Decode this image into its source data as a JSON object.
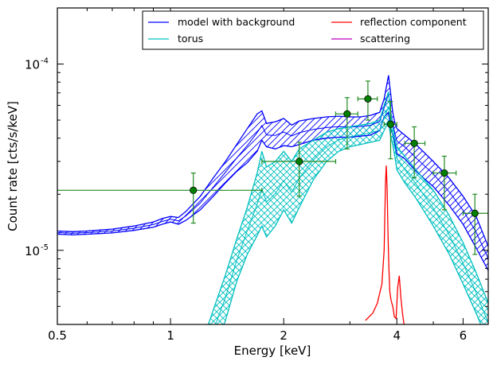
{
  "chart_data": {
    "type": "line",
    "xlabel": "Energy [keV]",
    "ylabel": "Count rate [cts/s/keV]",
    "xscale": "log",
    "yscale": "log",
    "xlim": [
      0.5,
      7.0
    ],
    "ylim": [
      4e-06,
      0.0002
    ],
    "x_ticks": [
      {
        "value": 0.5,
        "label": "0.5"
      },
      {
        "value": 1,
        "label": "1"
      },
      {
        "value": 2,
        "label": "2"
      },
      {
        "value": 4,
        "label": "4"
      },
      {
        "value": 6,
        "label": "6"
      }
    ],
    "y_ticks": [
      {
        "value": 1e-05,
        "base": "10",
        "exp": "-5"
      },
      {
        "value": 0.0001,
        "base": "10",
        "exp": "-4"
      }
    ],
    "legend_position": "top-right",
    "legend": [
      {
        "label": "model with background",
        "color": "#0000ff"
      },
      {
        "label": "reflection component",
        "color": "#ff0000"
      },
      {
        "label": "torus",
        "color": "#00bfbf"
      },
      {
        "label": "scattering",
        "color": "#bf00bf"
      }
    ],
    "colors": {
      "model": "#0000ff",
      "torus": "#00bfbf",
      "reflection": "#ff0000",
      "scattering": "#bf00bf",
      "data": "#008000",
      "errorbar": "#228b22"
    },
    "series": [
      {
        "name": "model with background",
        "color": "#0000ff",
        "x": [
          0.5,
          0.55,
          0.6,
          0.7,
          0.8,
          0.9,
          0.95,
          1.0,
          1.05,
          1.1,
          1.2,
          1.3,
          1.4,
          1.5,
          1.6,
          1.7,
          1.75,
          1.8,
          1.9,
          2.0,
          2.1,
          2.2,
          2.4,
          2.6,
          2.8,
          3.0,
          3.2,
          3.4,
          3.6,
          3.7,
          3.8,
          3.85,
          3.9,
          3.95,
          4.0,
          4.2,
          4.5,
          5.0,
          5.5,
          6.0,
          6.5,
          7.0
        ],
        "lower": [
          1.22e-05,
          1.21e-05,
          1.22e-05,
          1.24e-05,
          1.28e-05,
          1.33e-05,
          1.38e-05,
          1.42e-05,
          1.38e-05,
          1.45e-05,
          1.65e-05,
          1.95e-05,
          2.3e-05,
          2.65e-05,
          2.95e-05,
          3.4e-05,
          3.9e-05,
          3.6e-05,
          3.5e-05,
          3.65e-05,
          3.6e-05,
          3.7e-05,
          3.9e-05,
          4e-05,
          4.05e-05,
          4.05e-05,
          4.1e-05,
          4.15e-05,
          4.4e-05,
          5.2e-05,
          5.5e-05,
          4.5e-05,
          4.2e-05,
          3.75e-05,
          3.3e-05,
          3.1e-05,
          2.65e-05,
          2.2e-05,
          1.75e-05,
          1.38e-05,
          1.03e-05,
          7.8e-06
        ],
        "upper": [
          1.27e-05,
          1.26e-05,
          1.27e-05,
          1.3e-05,
          1.35e-05,
          1.42e-05,
          1.48e-05,
          1.52e-05,
          1.5e-05,
          1.62e-05,
          1.95e-05,
          2.45e-05,
          3e-05,
          3.7e-05,
          4.5e-05,
          5.4e-05,
          5.6e-05,
          4.8e-05,
          4.9e-05,
          5.1e-05,
          4.7e-05,
          4.95e-05,
          5.1e-05,
          5.2e-05,
          5.25e-05,
          5.2e-05,
          5.2e-05,
          5.3e-05,
          5.5e-05,
          6.5e-05,
          8.7e-05,
          7e-05,
          5.5e-05,
          4.85e-05,
          4.5e-05,
          4.15e-05,
          3.7e-05,
          3e-05,
          2.45e-05,
          1.95e-05,
          1.52e-05,
          1.05e-05
        ]
      },
      {
        "name": "torus",
        "color": "#00bfbf",
        "x": [
          1.2,
          1.3,
          1.4,
          1.5,
          1.6,
          1.7,
          1.75,
          1.8,
          1.9,
          2.0,
          2.1,
          2.2,
          2.4,
          2.6,
          2.8,
          3.0,
          3.2,
          3.4,
          3.6,
          3.7,
          3.8,
          3.85,
          3.9,
          3.95,
          4.0,
          4.2,
          4.5,
          5.0,
          5.5,
          6.0,
          6.5,
          7.0
        ],
        "lower": [
          2e-06,
          2.9e-06,
          4.2e-06,
          6.8e-06,
          9.5e-06,
          1.2e-05,
          1.35e-05,
          1.18e-05,
          1.35e-05,
          1.65e-05,
          1.4e-05,
          1.7e-05,
          2.4e-05,
          3e-05,
          3.4e-05,
          3.6e-05,
          3.7e-05,
          3.8e-05,
          3.9e-05,
          4.4e-05,
          4.9e-05,
          4.1e-05,
          3.7e-05,
          3.2e-05,
          2.7e-05,
          2.3e-05,
          1.9e-05,
          1.35e-05,
          9.6e-06,
          6.6e-06,
          4.6e-06,
          3.2e-06
        ],
        "upper": [
          3e-06,
          4.8e-06,
          7.4e-06,
          1.15e-05,
          1.7e-05,
          2.6e-05,
          3.4e-05,
          2.8e-05,
          3e-05,
          3.4e-05,
          3e-05,
          3.5e-05,
          3.9e-05,
          4.3e-05,
          4.5e-05,
          4.6e-05,
          4.7e-05,
          4.8e-05,
          5e-05,
          6e-05,
          7.1e-05,
          5.5e-05,
          4.6e-05,
          4e-05,
          3.6e-05,
          3.2e-05,
          2.7e-05,
          2.1e-05,
          1.55e-05,
          1.1e-05,
          7.6e-06,
          5.2e-06
        ]
      },
      {
        "name": "reflection component",
        "color": "#ff0000",
        "x": [
          3.3,
          3.45,
          3.55,
          3.65,
          3.7,
          3.73,
          3.75,
          3.77,
          3.79,
          3.81,
          3.83,
          3.86,
          3.9,
          3.94,
          3.98,
          4.02,
          4.06,
          4.1,
          4.14,
          4.18
        ],
        "y": [
          4.2e-06,
          4.6e-06,
          5.2e-06,
          6.6e-06,
          1e-05,
          2.3e-05,
          2.85e-05,
          2.1e-05,
          1.2e-05,
          8e-06,
          6e-06,
          5.4e-06,
          5e-06,
          4.4e-06,
          4.3e-06,
          6.3e-06,
          7.3e-06,
          5.6e-06,
          4.6e-06,
          4e-06
        ]
      },
      {
        "name": "scattering",
        "color": "#bf00bf",
        "x": [],
        "y": []
      }
    ],
    "data_points": [
      {
        "x": 1.15,
        "y": 2.1e-05,
        "xerr": [
          0.5,
          1.75
        ],
        "yerr": [
          1.4e-05,
          2.6e-05
        ]
      },
      {
        "x": 2.2,
        "y": 3e-05,
        "xerr": [
          1.75,
          2.75
        ],
        "yerr": [
          1.95e-05,
          3.8e-05
        ]
      },
      {
        "x": 2.95,
        "y": 5.4e-05,
        "xerr": [
          2.75,
          3.15
        ],
        "yerr": [
          3.5e-05,
          6.6e-05
        ]
      },
      {
        "x": 3.35,
        "y": 6.5e-05,
        "xerr": [
          3.15,
          3.55
        ],
        "yerr": [
          5e-05,
          8.1e-05
        ]
      },
      {
        "x": 3.85,
        "y": 4.75e-05,
        "xerr": [
          3.7,
          4.0
        ],
        "yerr": [
          3.1e-05,
          6.3e-05
        ]
      },
      {
        "x": 4.45,
        "y": 3.75e-05,
        "xerr": [
          4.2,
          4.75
        ],
        "yerr": [
          2.45e-05,
          4.6e-05
        ]
      },
      {
        "x": 5.35,
        "y": 2.6e-05,
        "xerr": [
          5.0,
          5.75
        ],
        "yerr": [
          1.65e-05,
          3.2e-05
        ]
      },
      {
        "x": 6.45,
        "y": 1.58e-05,
        "xerr": [
          6.0,
          7.0
        ],
        "yerr": [
          9.5e-06,
          2e-05
        ]
      }
    ]
  }
}
